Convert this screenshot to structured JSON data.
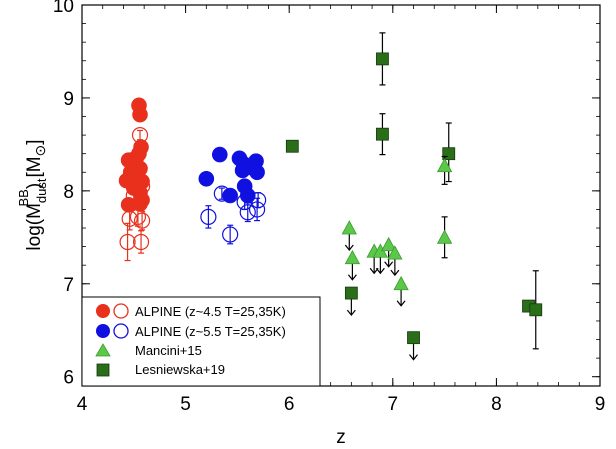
{
  "chart_data": {
    "type": "scatter",
    "xlabel": "z",
    "ylabel_parts": {
      "main": "log(M",
      "sub": "dust",
      "sup": "BB",
      "close": ")  [M",
      "sun": "⊙",
      "end": "]"
    },
    "xlim": [
      4,
      9
    ],
    "ylim": [
      5.9,
      10
    ],
    "xticks": [
      "4",
      "5",
      "6",
      "7",
      "8",
      "9"
    ],
    "yticks": [
      "6",
      "7",
      "8",
      "9",
      "10"
    ],
    "legend_position": "bottom-left",
    "series": [
      {
        "name": "ALPINE (z~4.5 T=25,35K)",
        "marker": "circle",
        "color": "#e8301c",
        "filled": [
          {
            "x": 4.55,
            "y": 8.92
          },
          {
            "x": 4.56,
            "y": 8.82
          },
          {
            "x": 4.57,
            "y": 8.47
          },
          {
            "x": 4.55,
            "y": 8.4
          },
          {
            "x": 4.45,
            "y": 8.33
          },
          {
            "x": 4.5,
            "y": 8.28
          },
          {
            "x": 4.56,
            "y": 8.24
          },
          {
            "x": 4.47,
            "y": 8.2
          },
          {
            "x": 4.54,
            "y": 8.15
          },
          {
            "x": 4.58,
            "y": 8.1
          },
          {
            "x": 4.43,
            "y": 8.11
          },
          {
            "x": 4.5,
            "y": 8.03
          },
          {
            "x": 4.56,
            "y": 7.98
          },
          {
            "x": 4.45,
            "y": 7.85
          },
          {
            "x": 4.56,
            "y": 7.86
          },
          {
            "x": 4.58,
            "y": 7.9
          }
        ],
        "open": [
          {
            "x": 4.56,
            "y": 8.6,
            "err": 0.05
          },
          {
            "x": 4.52,
            "y": 8.35,
            "err": 0.05
          },
          {
            "x": 4.55,
            "y": 8.1,
            "err": 0.05
          },
          {
            "x": 4.58,
            "y": 8.05,
            "err": 0.05
          },
          {
            "x": 4.5,
            "y": 7.95,
            "err": 0.08
          },
          {
            "x": 4.46,
            "y": 7.7,
            "err": 0.12
          },
          {
            "x": 4.54,
            "y": 7.72,
            "err": 0.1
          },
          {
            "x": 4.58,
            "y": 7.68,
            "err": 0.1
          },
          {
            "x": 4.44,
            "y": 7.45,
            "err": 0.2
          },
          {
            "x": 4.57,
            "y": 7.45,
            "err": 0.12
          }
        ]
      },
      {
        "name": "ALPINE (z~5.5 T=25,35K)",
        "marker": "circle",
        "color": "#1010e0",
        "filled": [
          {
            "x": 5.2,
            "y": 8.13
          },
          {
            "x": 5.33,
            "y": 8.39
          },
          {
            "x": 5.43,
            "y": 7.95
          },
          {
            "x": 5.52,
            "y": 8.35
          },
          {
            "x": 5.56,
            "y": 8.29
          },
          {
            "x": 5.55,
            "y": 8.22
          },
          {
            "x": 5.64,
            "y": 8.25
          },
          {
            "x": 5.68,
            "y": 8.32
          },
          {
            "x": 5.69,
            "y": 8.2
          },
          {
            "x": 5.57,
            "y": 8.05
          },
          {
            "x": 5.6,
            "y": 7.95
          }
        ],
        "open": [
          {
            "x": 5.22,
            "y": 7.72,
            "err": 0.12
          },
          {
            "x": 5.35,
            "y": 7.97,
            "err": 0.06
          },
          {
            "x": 5.43,
            "y": 7.53,
            "err": 0.1
          },
          {
            "x": 5.57,
            "y": 7.88,
            "err": 0.08
          },
          {
            "x": 5.6,
            "y": 7.77,
            "err": 0.1
          },
          {
            "x": 5.69,
            "y": 7.8,
            "err": 0.12
          },
          {
            "x": 5.7,
            "y": 7.9,
            "err": 0.08
          }
        ]
      },
      {
        "name": "Mancini+15",
        "marker": "triangle",
        "color": "#5cc84a",
        "points": [
          {
            "x": 6.58,
            "y": 7.6,
            "upper_limit": true
          },
          {
            "x": 6.61,
            "y": 7.28,
            "upper_limit": true
          },
          {
            "x": 6.82,
            "y": 7.35,
            "upper_limit": true
          },
          {
            "x": 6.88,
            "y": 7.35,
            "upper_limit": true
          },
          {
            "x": 6.96,
            "y": 7.42,
            "upper_limit": true
          },
          {
            "x": 7.02,
            "y": 7.33,
            "upper_limit": true
          },
          {
            "x": 7.08,
            "y": 7.0,
            "upper_limit": true
          },
          {
            "x": 7.5,
            "y": 8.27,
            "err_low": 0.2,
            "err_high": 0.1
          },
          {
            "x": 7.5,
            "y": 7.5,
            "err_low": 0.22,
            "err_high": 0.22
          }
        ]
      },
      {
        "name": "Lesniewska+19",
        "marker": "square",
        "color": "#2a6e1a",
        "points": [
          {
            "x": 6.03,
            "y": 8.48,
            "err": 0.05
          },
          {
            "x": 6.9,
            "y": 9.42,
            "err": 0.28
          },
          {
            "x": 6.9,
            "y": 8.61,
            "err": 0.22
          },
          {
            "x": 7.54,
            "y": 8.4,
            "err_low": 0.3,
            "err_high": 0.33
          },
          {
            "x": 6.6,
            "y": 6.9,
            "upper_limit": true
          },
          {
            "x": 7.2,
            "y": 6.42,
            "upper_limit": true
          },
          {
            "x": 8.31,
            "y": 6.76,
            "err": 0.05
          },
          {
            "x": 8.38,
            "y": 6.72,
            "err_low": 0.42,
            "err_high": 0.42
          }
        ]
      }
    ]
  }
}
